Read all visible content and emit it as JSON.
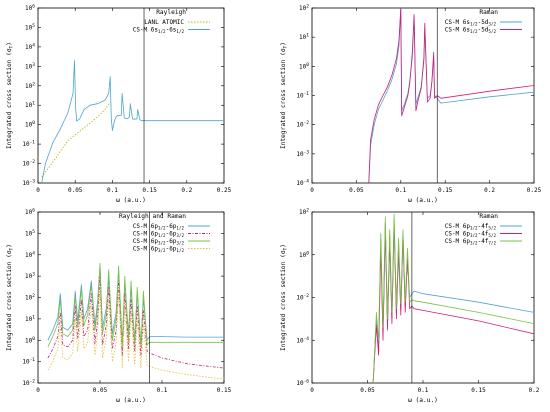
{
  "chart_data": [
    {
      "type": "line",
      "yscale": "log",
      "xlim": [
        0,
        0.25
      ],
      "ylim": [
        0.001,
        1000000
      ],
      "xticks": [
        0,
        0.05,
        0.1,
        0.15,
        0.2,
        0.25
      ],
      "xticklabels": [
        "0",
        "0.05",
        "0.1",
        "0.15",
        "0.2",
        "0.25"
      ],
      "ytick_exponents": [
        -3,
        -2,
        -1,
        0,
        1,
        2,
        3,
        4,
        5,
        6
      ],
      "xlabel": "ω (a.u.)",
      "ylabel": "Integrated cross section (σ",
      "ylabel_sub": "T",
      "ylabel_end": ")",
      "legend_title": "Rayleigh",
      "vline_x": 0.1425,
      "series": [
        {
          "name": "LANL ATOMIC",
          "color": "#b8b800",
          "dash": "1.5,1.5",
          "x": [
            0.005,
            0.02,
            0.04,
            0.06,
            0.08,
            0.09,
            0.097
          ],
          "y": [
            0.002,
            0.012,
            0.15,
            0.6,
            2.5,
            6,
            14
          ]
        },
        {
          "name": "CS-M 6s1/2-6s1/2",
          "color": "#4fa3d6",
          "dash": "",
          "x": [
            0.005,
            0.01,
            0.02,
            0.03,
            0.04,
            0.047,
            0.049,
            0.0505,
            0.052,
            0.056,
            0.062,
            0.07,
            0.08,
            0.09,
            0.095,
            0.097,
            0.0985,
            0.1,
            0.102,
            0.104,
            0.106,
            0.108,
            0.11,
            0.112,
            0.113,
            0.116,
            0.12,
            0.123,
            0.124,
            0.127,
            0.13,
            0.133,
            0.134,
            0.137,
            0.14,
            0.15,
            0.2,
            0.25
          ],
          "y": [
            0.001,
            0.01,
            0.12,
            0.6,
            4,
            40,
            2000,
            8,
            1.5,
            2,
            6,
            10,
            12,
            18,
            40,
            300,
            2,
            0.5,
            1.2,
            2.2,
            2.8,
            3,
            3,
            3,
            40,
            2.2,
            2,
            2.5,
            12,
            2,
            1.9,
            2,
            6,
            1.8,
            1.6,
            1.6,
            1.6,
            1.6
          ]
        }
      ]
    },
    {
      "type": "line",
      "yscale": "log",
      "xlim": [
        0,
        0.25
      ],
      "ylim": [
        0.0001,
        100
      ],
      "xticks": [
        0,
        0.05,
        0.1,
        0.15,
        0.2,
        0.25
      ],
      "xticklabels": [
        "0",
        "0.05",
        "0.1",
        "0.15",
        "0.2",
        "0.25"
      ],
      "ytick_exponents": [
        -4,
        -3,
        -2,
        -1,
        0,
        1,
        2
      ],
      "xlabel": "ω (a.u.)",
      "ylabel": "Integrated cross section (σ",
      "ylabel_sub": "T",
      "ylabel_end": ")",
      "legend_title": "Raman",
      "vline_x": 0.141,
      "series": [
        {
          "name": "CS-M 6s1/2-5d3/2",
          "color": "#4fa3d6",
          "dash": "",
          "x": [
            0.064,
            0.066,
            0.07,
            0.075,
            0.08,
            0.085,
            0.09,
            0.095,
            0.098,
            0.1,
            0.101,
            0.104,
            0.108,
            0.11,
            0.113,
            0.115,
            0.117,
            0.119,
            0.123,
            0.126,
            0.127,
            0.13,
            0.133,
            0.135,
            0.137,
            0.138,
            0.141,
            0.145,
            0.2,
            0.25
          ],
          "y": [
            0.0001,
            0.002,
            0.01,
            0.035,
            0.07,
            0.15,
            0.35,
            1.2,
            5,
            100,
            0.03,
            0.05,
            0.12,
            0.3,
            2,
            50,
            0.05,
            0.08,
            0.2,
            1.5,
            20,
            0.08,
            0.1,
            0.3,
            2,
            0.1,
            0.08,
            0.055,
            0.09,
            0.13
          ]
        },
        {
          "name": "CS-M 6s1/2-5d5/2",
          "color": "#cc1f78",
          "dash": "",
          "x": [
            0.064,
            0.066,
            0.07,
            0.075,
            0.08,
            0.085,
            0.09,
            0.095,
            0.098,
            0.1,
            0.101,
            0.104,
            0.108,
            0.11,
            0.113,
            0.115,
            0.117,
            0.119,
            0.123,
            0.126,
            0.127,
            0.13,
            0.133,
            0.135,
            0.137,
            0.138,
            0.141,
            0.145,
            0.2,
            0.25
          ],
          "y": [
            0.0001,
            0.003,
            0.015,
            0.05,
            0.1,
            0.2,
            0.5,
            1.8,
            8,
            100,
            0.02,
            0.04,
            0.1,
            0.25,
            3,
            60,
            0.03,
            0.06,
            0.18,
            2,
            30,
            0.06,
            0.08,
            0.3,
            3,
            0.08,
            0.1,
            0.08,
            0.14,
            0.22
          ]
        }
      ]
    },
    {
      "type": "line",
      "yscale": "log",
      "xlim": [
        0,
        0.15
      ],
      "ylim": [
        0.01,
        1000000
      ],
      "xticks": [
        0,
        0.05,
        0.1,
        0.15
      ],
      "xticklabels": [
        "0",
        "0.05",
        "0.1",
        "0.15"
      ],
      "ytick_exponents": [
        -2,
        -1,
        0,
        1,
        2,
        3,
        4,
        5,
        6
      ],
      "xlabel": "ω (a.u.)",
      "ylabel": "Integrated cross section (σ",
      "ylabel_sub": "T",
      "ylabel_end": ")",
      "legend_title": "Rayleigh and Raman",
      "vline_x": 0.09,
      "series": [
        {
          "name": "CS-M 6p1/2-6p1/2",
          "color": "#4fa3d6",
          "dash": "",
          "x": [
            0.008,
            0.012,
            0.016,
            0.018,
            0.02,
            0.024,
            0.028,
            0.03,
            0.032,
            0.035,
            0.037,
            0.04,
            0.043,
            0.046,
            0.048,
            0.05,
            0.052,
            0.055,
            0.057,
            0.06,
            0.063,
            0.065,
            0.068,
            0.07,
            0.073,
            0.075,
            0.078,
            0.08,
            0.083,
            0.085,
            0.088,
            0.09,
            0.095,
            0.12,
            0.15
          ],
          "y": [
            1,
            3,
            12,
            150,
            4,
            3,
            6,
            200,
            8,
            400,
            10,
            30,
            600,
            5,
            60,
            3000,
            4,
            30,
            800,
            2,
            20,
            2000,
            0.8,
            500,
            2,
            300,
            0.9,
            150,
            0.7,
            90,
            1,
            1.5,
            1.5,
            1.4,
            1.4
          ]
        },
        {
          "name": "CS-M 6p1/2-6p3/2",
          "color": "#cc1f78",
          "dash": "3,1.5,1,1.5",
          "x": [
            0.008,
            0.012,
            0.016,
            0.018,
            0.02,
            0.024,
            0.028,
            0.03,
            0.032,
            0.035,
            0.037,
            0.04,
            0.043,
            0.046,
            0.048,
            0.05,
            0.052,
            0.055,
            0.057,
            0.06,
            0.063,
            0.065,
            0.068,
            0.07,
            0.073,
            0.075,
            0.078,
            0.08,
            0.083,
            0.085,
            0.088,
            0.09,
            0.1,
            0.12,
            0.15
          ],
          "y": [
            0.15,
            0.4,
            1.5,
            20,
            0.6,
            0.5,
            1,
            40,
            1.2,
            80,
            1.5,
            3,
            150,
            0.7,
            8,
            1000,
            0.6,
            5,
            300,
            0.4,
            3,
            600,
            0.2,
            150,
            0.4,
            80,
            0.3,
            40,
            0.2,
            25,
            0.3,
            0.25,
            0.15,
            0.08,
            0.05
          ]
        },
        {
          "name": "CS-M 6p3/2-6p3/2",
          "color": "#7ac143",
          "dash": "",
          "x": [
            0.008,
            0.012,
            0.016,
            0.018,
            0.02,
            0.024,
            0.028,
            0.03,
            0.032,
            0.035,
            0.037,
            0.04,
            0.043,
            0.046,
            0.048,
            0.05,
            0.052,
            0.055,
            0.057,
            0.06,
            0.063,
            0.065,
            0.068,
            0.07,
            0.073,
            0.075,
            0.078,
            0.08,
            0.083,
            0.085,
            0.088,
            0.09,
            0.095,
            0.12,
            0.15
          ],
          "y": [
            0.5,
            1.5,
            6,
            80,
            2,
            1.5,
            3,
            120,
            4,
            250,
            5,
            15,
            400,
            3,
            30,
            4000,
            2,
            15,
            2000,
            1,
            10,
            3000,
            0.5,
            1000,
            1,
            600,
            0.6,
            300,
            0.5,
            200,
            0.6,
            0.8,
            0.8,
            0.8,
            0.8
          ]
        },
        {
          "name": "CS-M 6p3/2-6p1/2",
          "color": "#e0c040",
          "dash": "1.5,1.5",
          "x": [
            0.008,
            0.012,
            0.016,
            0.018,
            0.02,
            0.024,
            0.028,
            0.03,
            0.032,
            0.035,
            0.037,
            0.04,
            0.043,
            0.046,
            0.048,
            0.05,
            0.052,
            0.055,
            0.057,
            0.06,
            0.063,
            0.065,
            0.068,
            0.07,
            0.073,
            0.075,
            0.078,
            0.08,
            0.083,
            0.085,
            0.088,
            0.09,
            0.1,
            0.12,
            0.15
          ],
          "y": [
            0.04,
            0.1,
            0.4,
            5,
            0.15,
            0.12,
            0.25,
            10,
            0.3,
            20,
            0.4,
            0.8,
            40,
            0.2,
            2,
            200,
            0.15,
            1.2,
            80,
            0.1,
            0.8,
            150,
            0.05,
            40,
            0.1,
            20,
            0.07,
            10,
            0.05,
            6,
            0.07,
            0.06,
            0.04,
            0.025,
            0.015
          ]
        }
      ]
    },
    {
      "type": "line",
      "yscale": "log",
      "xlim": [
        0,
        0.2
      ],
      "ylim": [
        1e-06,
        100
      ],
      "xticks": [
        0,
        0.05,
        0.1,
        0.15,
        0.2
      ],
      "xticklabels": [
        "0",
        "0.05",
        "0.1",
        "0.15",
        "0.2"
      ],
      "ytick_exponents": [
        -6,
        -4,
        -2,
        0,
        2
      ],
      "xlabel": "ω (a.u.)",
      "ylabel": "Integrated cross section (σ",
      "ylabel_sub": "T",
      "ylabel_end": ")",
      "legend_title": "Raman",
      "vline_x": 0.09,
      "series": [
        {
          "name": "CS-M 6p1/2-4f5/2",
          "color": "#4fa3d6",
          "dash": "",
          "x": [
            0.055,
            0.058,
            0.06,
            0.062,
            0.064,
            0.066,
            0.068,
            0.07,
            0.072,
            0.074,
            0.076,
            0.078,
            0.08,
            0.082,
            0.084,
            0.086,
            0.088,
            0.09,
            0.092,
            0.1,
            0.15,
            0.2
          ],
          "y": [
            1e-06,
            0.001,
            5e-05,
            5,
            0.0002,
            10,
            0.0005,
            3,
            0.001,
            20,
            0.002,
            1,
            0.003,
            5,
            0.004,
            0.5,
            0.01,
            0.015,
            0.02,
            0.015,
            0.006,
            0.002
          ]
        },
        {
          "name": "CS-M 6p3/2-4f5/2",
          "color": "#cc1f78",
          "dash": "",
          "x": [
            0.055,
            0.058,
            0.06,
            0.062,
            0.064,
            0.066,
            0.068,
            0.07,
            0.072,
            0.074,
            0.076,
            0.078,
            0.08,
            0.082,
            0.084,
            0.086,
            0.088,
            0.09,
            0.092,
            0.1,
            0.15,
            0.2
          ],
          "y": [
            1e-06,
            0.0005,
            2e-05,
            2,
            0.0001,
            30,
            0.0003,
            8,
            0.0006,
            50,
            0.001,
            3,
            0.0015,
            10,
            0.002,
            1,
            0.003,
            0.004,
            0.003,
            0.0025,
            0.0008,
            0.0002
          ]
        },
        {
          "name": "CS-M 6p3/2-4f7/2",
          "color": "#7ac143",
          "dash": "",
          "x": [
            0.055,
            0.058,
            0.06,
            0.062,
            0.064,
            0.066,
            0.068,
            0.07,
            0.072,
            0.074,
            0.076,
            0.078,
            0.08,
            0.082,
            0.084,
            0.086,
            0.088,
            0.09,
            0.092,
            0.1,
            0.15,
            0.2
          ],
          "y": [
            1e-06,
            0.002,
            0.0001,
            10,
            0.0004,
            60,
            0.001,
            15,
            0.002,
            80,
            0.003,
            6,
            0.005,
            15,
            0.006,
            2,
            0.006,
            0.008,
            0.007,
            0.006,
            0.002,
            0.0006
          ]
        }
      ]
    }
  ],
  "legends": [
    [
      {
        "main": "LANL ATOMIC",
        "sub": [],
        "tail": ""
      },
      {
        "main": "CS-M 6s",
        "sub": [
          "1/2",
          "1/2"
        ],
        "mid": "-6s",
        "tail": ""
      }
    ],
    [
      {
        "main": "CS-M 6s",
        "sub": [
          "1/2",
          "3/2"
        ],
        "mid": "-5d",
        "tail": ""
      },
      {
        "main": "CS-M 6s",
        "sub": [
          "1/2",
          "5/2"
        ],
        "mid": "-5d",
        "tail": ""
      }
    ],
    [
      {
        "main": "CS-M 6p",
        "sub": [
          "1/2",
          "1/2"
        ],
        "mid": "-6p",
        "tail": ""
      },
      {
        "main": "CS-M 6p",
        "sub": [
          "1/2",
          "3/2"
        ],
        "mid": "-6p",
        "tail": ""
      },
      {
        "main": "CS-M 6p",
        "sub": [
          "3/2",
          "3/2"
        ],
        "mid": "-6p",
        "tail": ""
      },
      {
        "main": "CS-M 6p",
        "sub": [
          "3/2",
          "1/2"
        ],
        "mid": "-6p",
        "tail": ""
      }
    ],
    [
      {
        "main": "CS-M 6p",
        "sub": [
          "1/2",
          "5/2"
        ],
        "mid": "-4f",
        "tail": ""
      },
      {
        "main": "CS-M 6p",
        "sub": [
          "3/2",
          "5/2"
        ],
        "mid": "-4f",
        "tail": ""
      },
      {
        "main": "CS-M 6p",
        "sub": [
          "3/2",
          "7/2"
        ],
        "mid": "-4f",
        "tail": ""
      }
    ]
  ]
}
